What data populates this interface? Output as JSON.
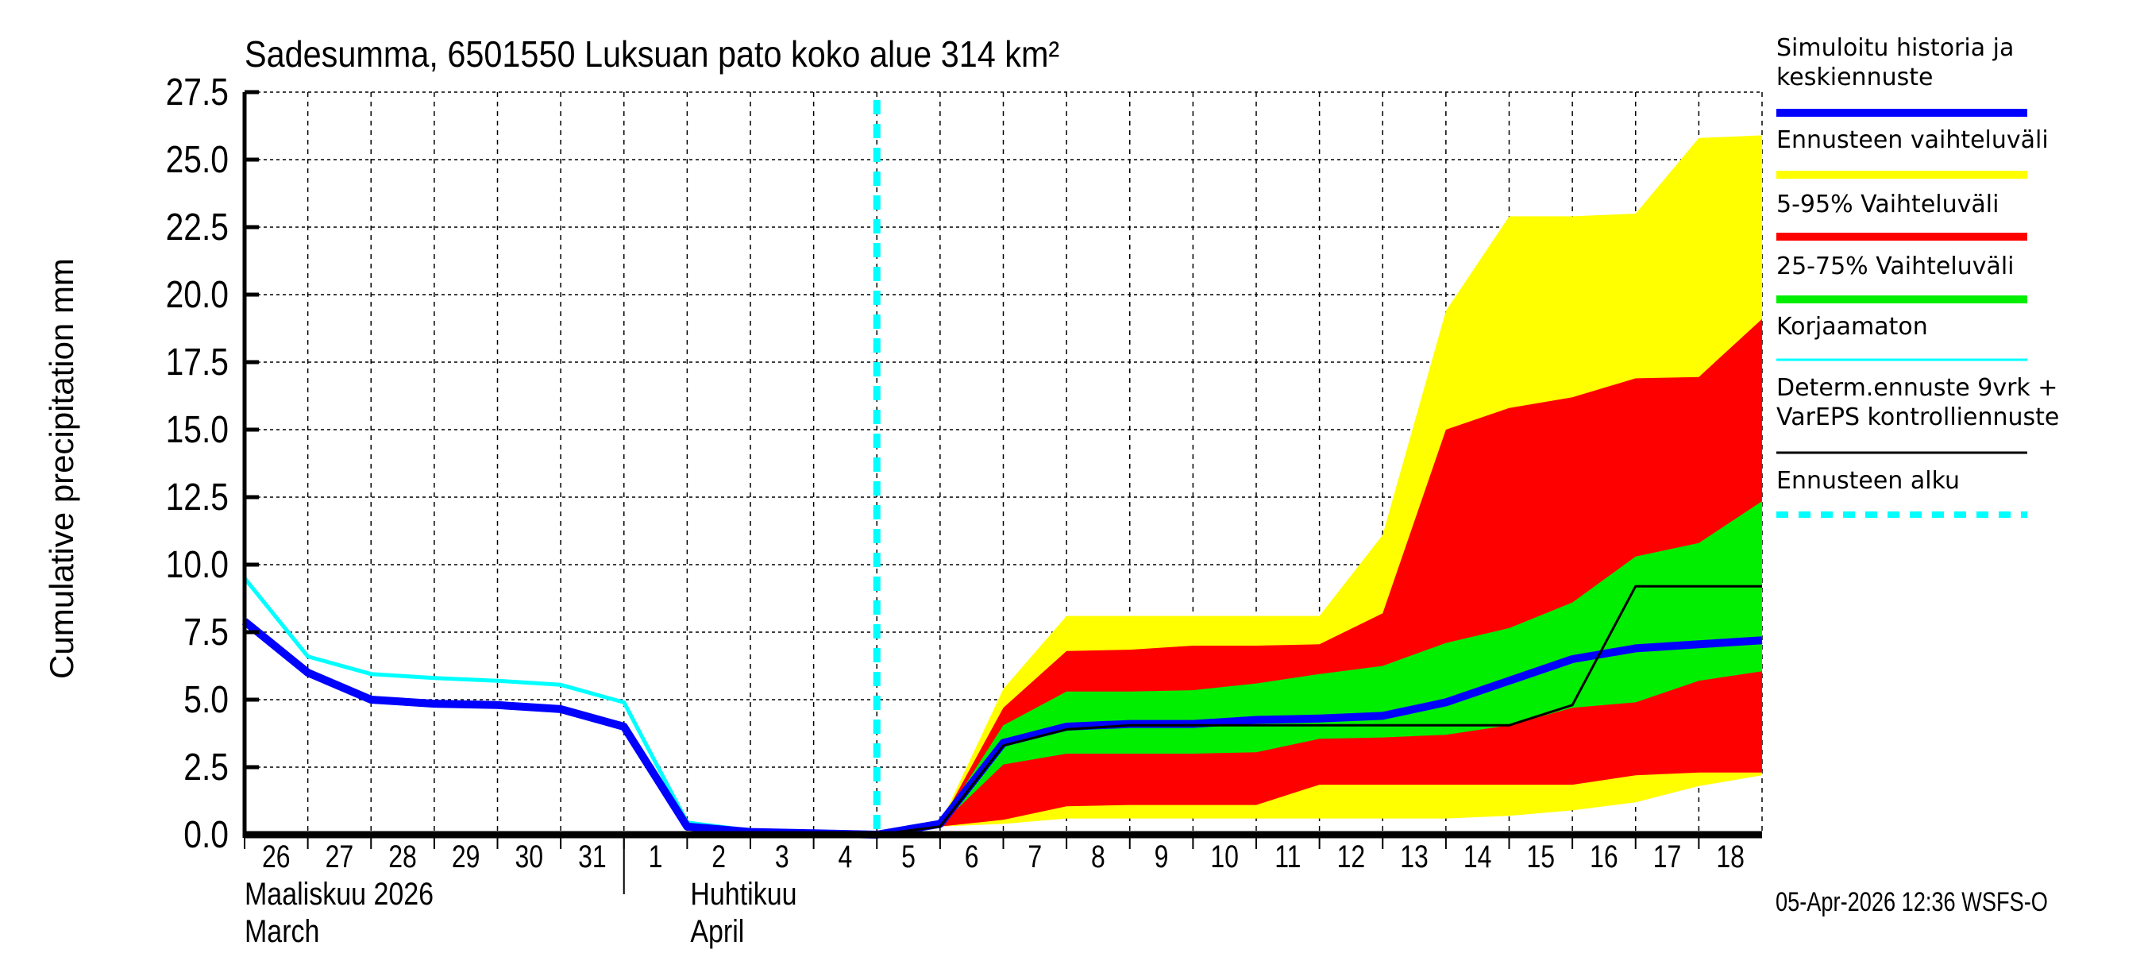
{
  "chart_data": {
    "type": "area",
    "title": "Sadesumma, 6501550 Luksuan pato koko alue 314 km²",
    "ylabel": "Cumulative precipitation   mm",
    "xlabel": "",
    "ylim": [
      0,
      27.5
    ],
    "yticks": [
      "0.0",
      "2.5",
      "5.0",
      "7.5",
      "10.0",
      "12.5",
      "15.0",
      "17.5",
      "20.0",
      "22.5",
      "25.0",
      "27.5"
    ],
    "grid": true,
    "legend_placement": "right",
    "x_day_labels": [
      "26",
      "27",
      "28",
      "29",
      "30",
      "31",
      "1",
      "2",
      "3",
      "4",
      "5",
      "6",
      "7",
      "8",
      "9",
      "10",
      "11",
      "12",
      "13",
      "14",
      "15",
      "16",
      "17",
      "18"
    ],
    "month_labels": [
      {
        "fi": "Maaliskuu 2026",
        "en": "March"
      },
      {
        "fi": "Huhtikuu",
        "en": "April"
      }
    ],
    "x": [
      "2026-03-26",
      "2026-03-27",
      "2026-03-28",
      "2026-03-29",
      "2026-03-30",
      "2026-03-31",
      "2026-04-01",
      "2026-04-02",
      "2026-04-03",
      "2026-04-04",
      "2026-04-05",
      "2026-04-06",
      "2026-04-07",
      "2026-04-08",
      "2026-04-09",
      "2026-04-10",
      "2026-04-11",
      "2026-04-12",
      "2026-04-13",
      "2026-04-14",
      "2026-04-15",
      "2026-04-16",
      "2026-04-17",
      "2026-04-18",
      "2026-04-19"
    ],
    "forecast_start": "2026-04-05",
    "bands_x": [
      "2026-04-05",
      "2026-04-06",
      "2026-04-07",
      "2026-04-08",
      "2026-04-09",
      "2026-04-10",
      "2026-04-11",
      "2026-04-12",
      "2026-04-13",
      "2026-04-14",
      "2026-04-15",
      "2026-04-16",
      "2026-04-17",
      "2026-04-18",
      "2026-04-19"
    ],
    "bands": [
      {
        "name": "Ennusteen vaihteluväli",
        "color": "#ffff00",
        "upper": [
          0,
          0.4,
          5.4,
          8.1,
          8.1,
          8.1,
          8.1,
          8.1,
          11.1,
          19.4,
          22.9,
          22.9,
          23.0,
          25.8,
          25.9
        ],
        "lower": [
          0,
          0.3,
          0.4,
          0.6,
          0.6,
          0.6,
          0.6,
          0.6,
          0.6,
          0.6,
          0.7,
          0.9,
          1.2,
          1.8,
          2.2
        ]
      },
      {
        "name": "5-95% Vaihteluväli",
        "color": "#ff0000",
        "upper": [
          0,
          0.4,
          4.7,
          6.8,
          6.85,
          7.0,
          7.0,
          7.05,
          8.2,
          15.0,
          15.8,
          16.2,
          16.9,
          16.95,
          19.1
        ],
        "lower": [
          0,
          0.3,
          0.55,
          1.05,
          1.1,
          1.1,
          1.1,
          1.85,
          1.85,
          1.85,
          1.85,
          1.85,
          2.2,
          2.3,
          2.3
        ]
      },
      {
        "name": "25-75% Vaihteluväli",
        "color": "#00ee00",
        "upper": [
          0,
          0.4,
          4.05,
          5.3,
          5.3,
          5.35,
          5.6,
          5.95,
          6.25,
          7.1,
          7.65,
          8.6,
          10.3,
          10.8,
          12.35
        ],
        "lower": [
          0,
          0.35,
          2.6,
          3.0,
          3.0,
          3.0,
          3.05,
          3.55,
          3.6,
          3.7,
          4.05,
          4.7,
          4.9,
          5.7,
          6.05
        ]
      }
    ],
    "series": [
      {
        "name": "Simuloitu historia ja keskiennuste",
        "color": "#0000ff",
        "values": [
          7.9,
          6.0,
          5.0,
          4.85,
          4.8,
          4.65,
          4.0,
          0.3,
          0.1,
          0.05,
          0,
          0.4,
          3.4,
          4.0,
          4.1,
          4.1,
          4.25,
          4.3,
          4.4,
          4.9,
          5.7,
          6.5,
          6.9,
          7.05,
          7.2
        ]
      },
      {
        "name": "Korjaamaton",
        "color": "#00ffff",
        "values": [
          9.5,
          6.6,
          5.95,
          5.8,
          5.7,
          5.55,
          4.9,
          0.45,
          0.15,
          0.05,
          0,
          null,
          null,
          null,
          null,
          null,
          null,
          null,
          null,
          null,
          null,
          null,
          null,
          null,
          null
        ]
      },
      {
        "name": "Determ.ennuste 9vrk + VarEPS kontrolliennuste",
        "color": "#000000",
        "values": [
          null,
          null,
          null,
          null,
          null,
          null,
          null,
          null,
          null,
          null,
          0,
          0.3,
          3.3,
          3.9,
          4.05,
          4.05,
          4.05,
          4.05,
          4.05,
          4.05,
          4.05,
          4.8,
          9.2,
          9.2,
          9.2
        ]
      }
    ]
  },
  "legend": [
    {
      "lines": [
        "Simuloitu historia ja",
        "keskiennuste"
      ],
      "color": "#0000ff",
      "style": "thick"
    },
    {
      "lines": [
        "Ennusteen vaihteluväli"
      ],
      "color": "#ffff00",
      "style": "thick"
    },
    {
      "lines": [
        "5-95% Vaihteluväli"
      ],
      "color": "#ff0000",
      "style": "thick"
    },
    {
      "lines": [
        "25-75% Vaihteluväli"
      ],
      "color": "#00ee00",
      "style": "thick"
    },
    {
      "lines": [
        "Korjaamaton"
      ],
      "color": "#00ffff",
      "style": "thin"
    },
    {
      "lines": [
        "Determ.ennuste 9vrk +",
        "VarEPS kontrolliennuste"
      ],
      "color": "#000000",
      "style": "thin"
    },
    {
      "lines": [
        "Ennusteen alku"
      ],
      "color": "#00ffff",
      "style": "dashed"
    }
  ],
  "footer": {
    "timestamp": "05-Apr-2026 12:36 WSFS-O"
  }
}
